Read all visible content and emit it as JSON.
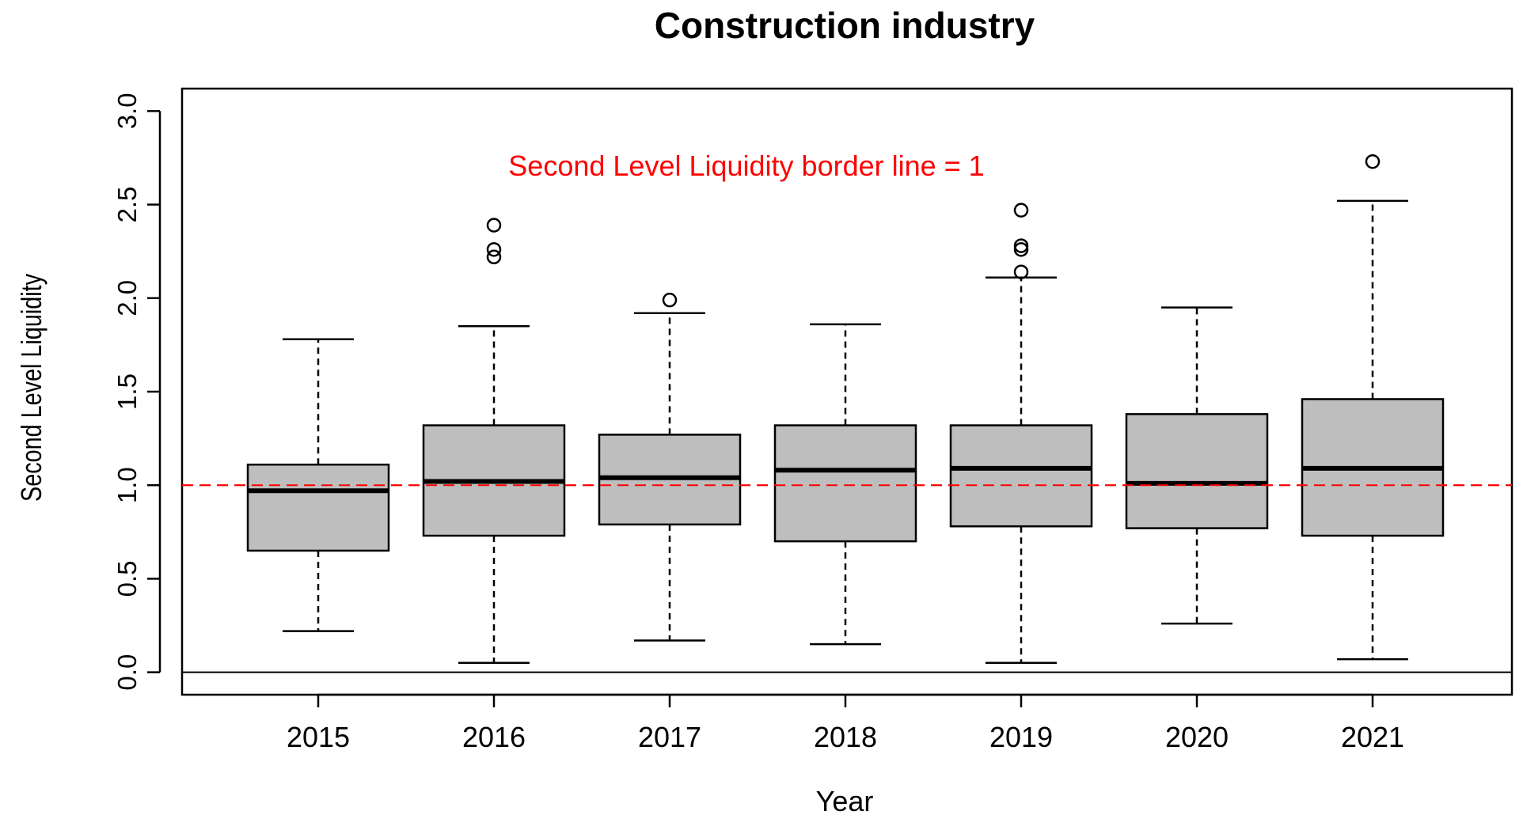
{
  "chart_data": {
    "type": "boxplot",
    "title": "Construction industry",
    "xlabel": "Year",
    "ylabel": "Second Level Liquidity",
    "ylim": [
      -0.12,
      3.12
    ],
    "yticks": [
      "0.0",
      "0.5",
      "1.0",
      "1.5",
      "2.0",
      "2.5",
      "3.0"
    ],
    "ytick_values": [
      0.0,
      0.5,
      1.0,
      1.5,
      2.0,
      2.5,
      3.0
    ],
    "categories": [
      "2015",
      "2016",
      "2017",
      "2018",
      "2019",
      "2020",
      "2021"
    ],
    "boxes": [
      {
        "year": "2015",
        "whisker_low": 0.22,
        "q1": 0.65,
        "median": 0.97,
        "q3": 1.11,
        "whisker_high": 1.78,
        "outliers": []
      },
      {
        "year": "2016",
        "whisker_low": 0.05,
        "q1": 0.73,
        "median": 1.02,
        "q3": 1.32,
        "whisker_high": 1.85,
        "outliers": [
          2.22,
          2.26,
          2.39
        ]
      },
      {
        "year": "2017",
        "whisker_low": 0.17,
        "q1": 0.79,
        "median": 1.04,
        "q3": 1.27,
        "whisker_high": 1.92,
        "outliers": [
          1.99
        ]
      },
      {
        "year": "2018",
        "whisker_low": 0.15,
        "q1": 0.7,
        "median": 1.08,
        "q3": 1.32,
        "whisker_high": 1.86,
        "outliers": []
      },
      {
        "year": "2019",
        "whisker_low": 0.05,
        "q1": 0.78,
        "median": 1.09,
        "q3": 1.32,
        "whisker_high": 2.11,
        "outliers": [
          2.14,
          2.26,
          2.28,
          2.47
        ]
      },
      {
        "year": "2020",
        "whisker_low": 0.26,
        "q1": 0.77,
        "median": 1.01,
        "q3": 1.38,
        "whisker_high": 1.95,
        "outliers": []
      },
      {
        "year": "2021",
        "whisker_low": 0.07,
        "q1": 0.73,
        "median": 1.09,
        "q3": 1.46,
        "whisker_high": 2.52,
        "outliers": [
          2.73
        ]
      }
    ],
    "reference_lines": [
      {
        "value": 1.0,
        "style": "dashed",
        "color": "#ff0000"
      },
      {
        "value": 0.0,
        "style": "solid",
        "color": "#000000"
      }
    ],
    "annotation": {
      "text": "Second Level Liquidity border line = 1",
      "color": "#ff0000"
    },
    "box_fill": "#bebebe"
  }
}
